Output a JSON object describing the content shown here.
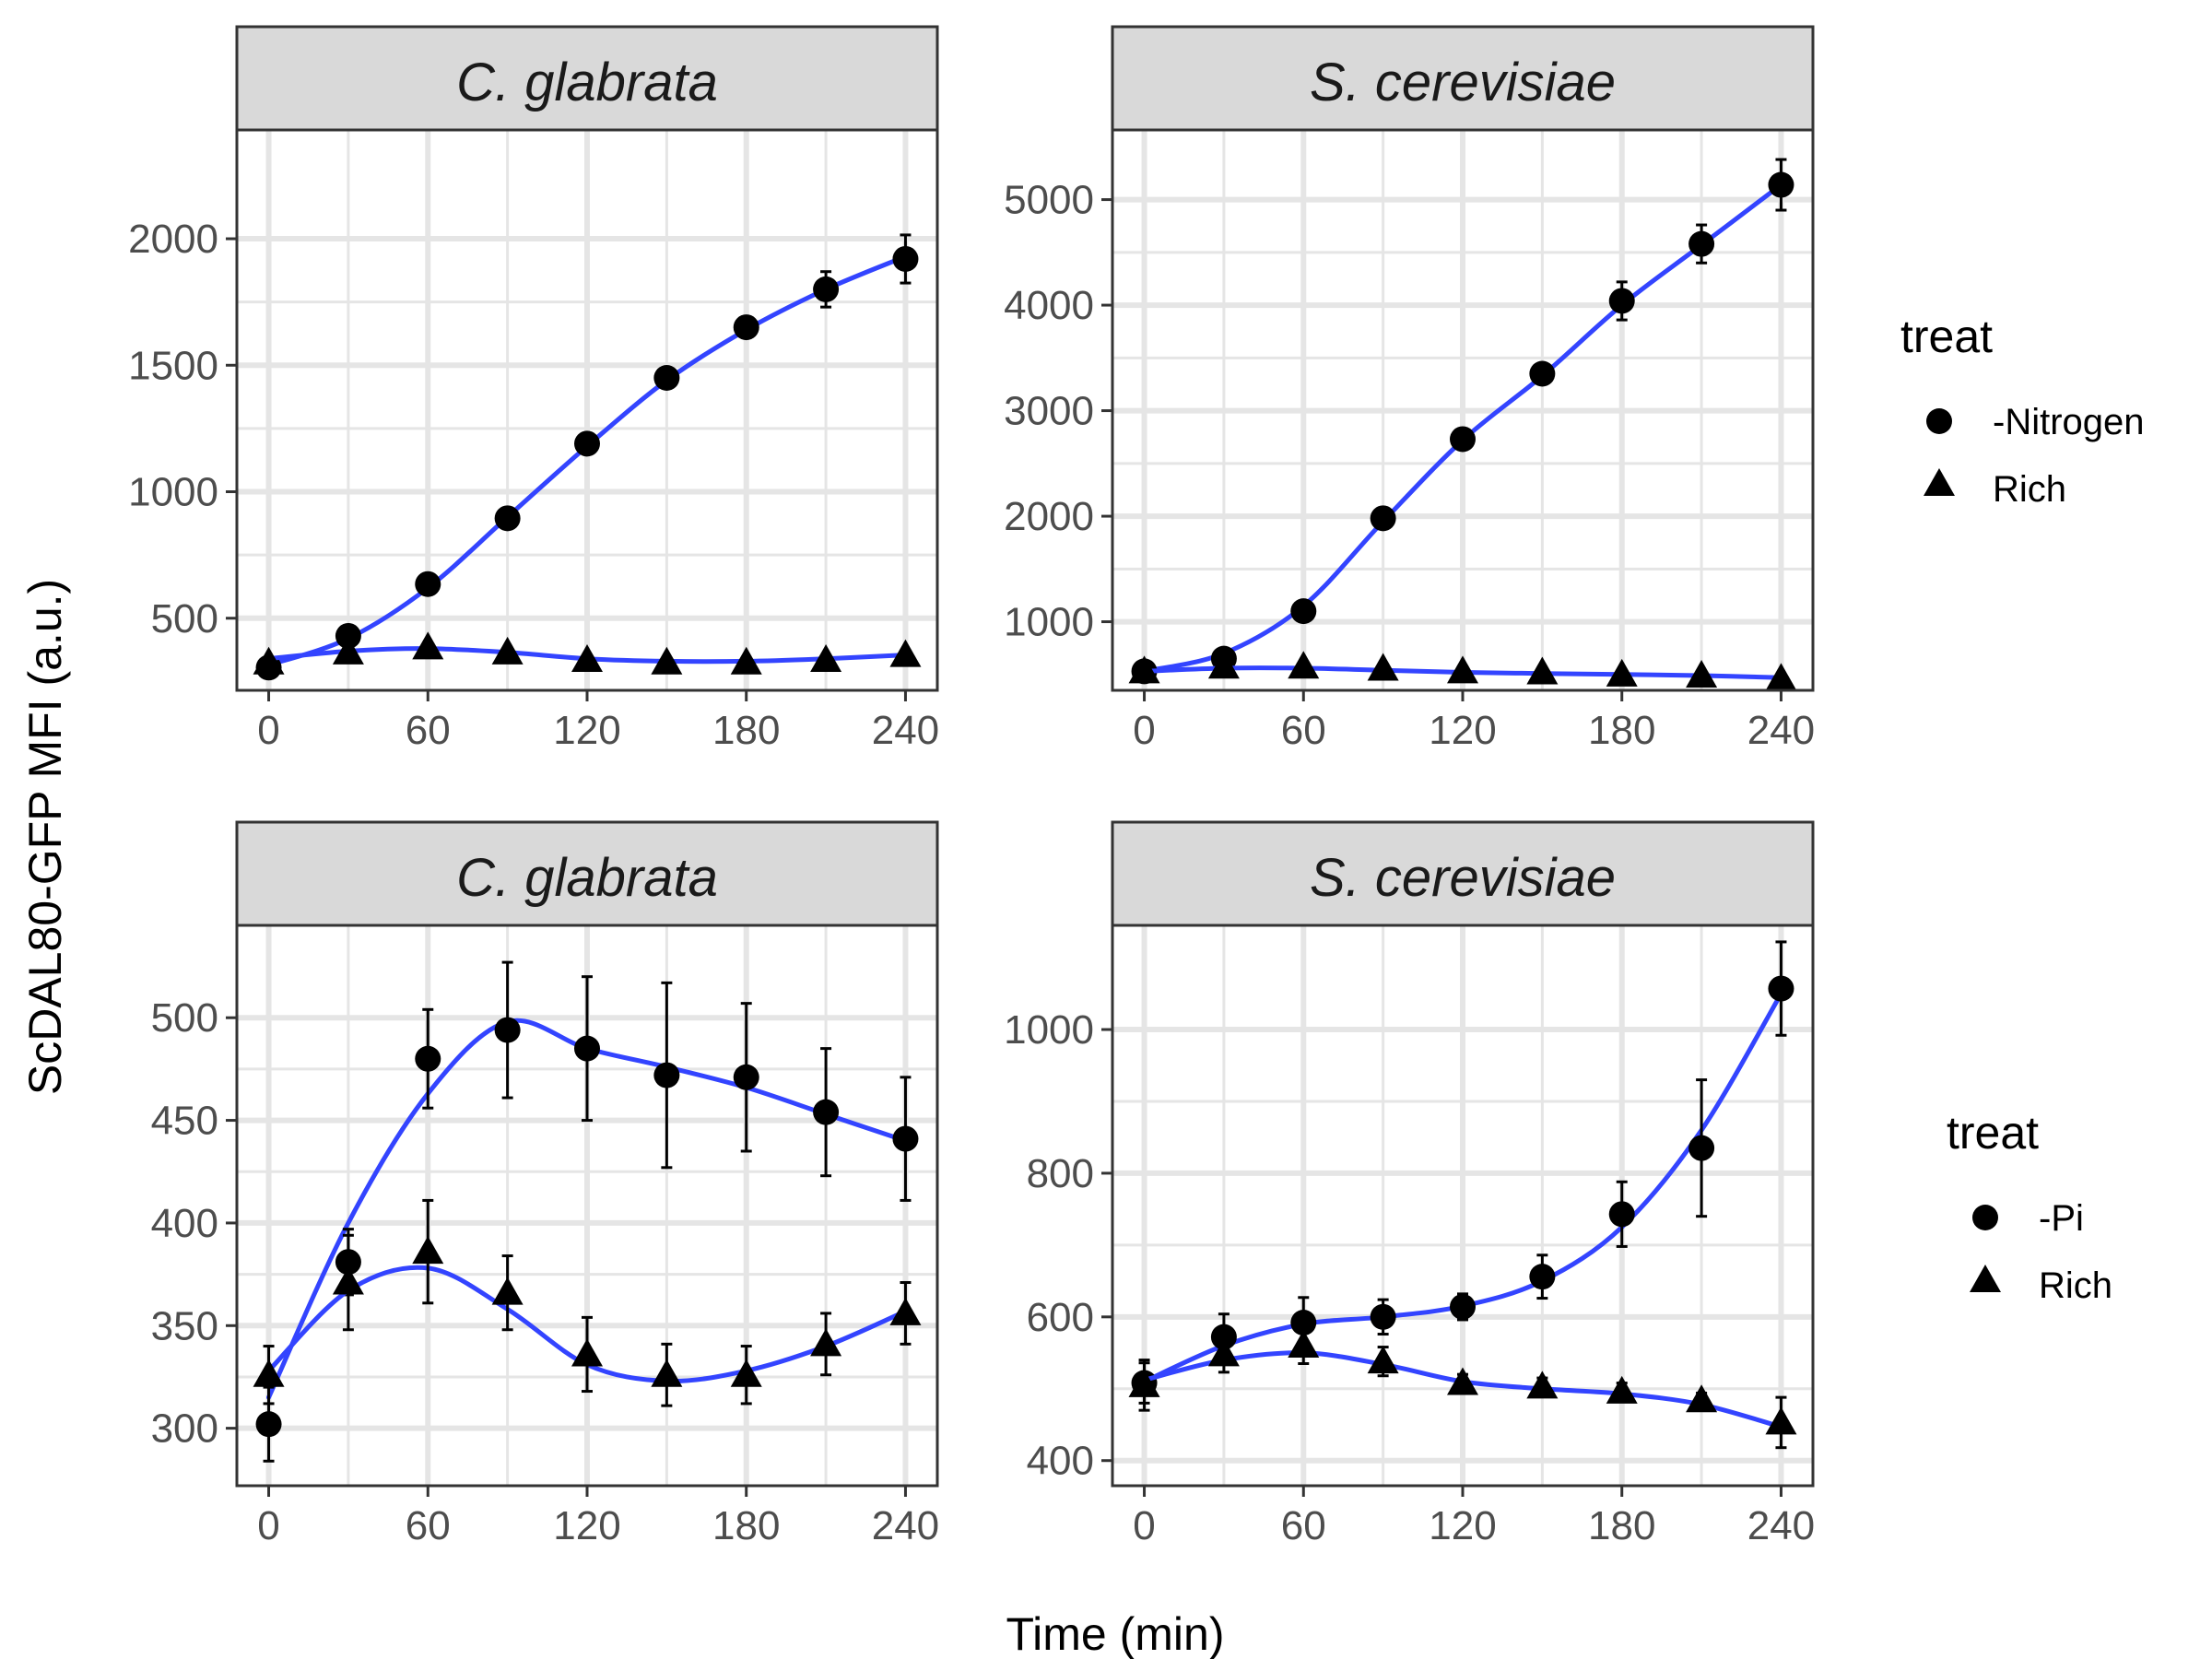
{
  "figure": {
    "xlabel": "Time (min)",
    "ylabel": "ScDAL80-GFP MFI (a.u.)"
  },
  "legends": [
    {
      "title": "treat",
      "entries": [
        {
          "label": "-Nitrogen",
          "shape": "circle"
        },
        {
          "label": "Rich",
          "shape": "triangle"
        }
      ]
    },
    {
      "title": "treat",
      "entries": [
        {
          "label": "-Pi",
          "shape": "circle"
        },
        {
          "label": "Rich",
          "shape": "triangle"
        }
      ]
    }
  ],
  "colors": {
    "fit_line": "#3344ff",
    "points": "#000000",
    "grid": "#e5e5e5",
    "strip_fill": "#d9d9d9",
    "strip_border": "#333333"
  },
  "chart_data": [
    {
      "type": "scatter",
      "title": "C. glabrata",
      "xlim": [
        -12,
        252
      ],
      "ylim": [
        215,
        2430
      ],
      "xticks": [
        0,
        60,
        120,
        180,
        240
      ],
      "yticks": [
        500,
        1000,
        1500,
        2000
      ],
      "grid": true,
      "series": [
        {
          "name": "-Nitrogen",
          "shape": "circle",
          "x": [
            0,
            30,
            60,
            90,
            120,
            150,
            180,
            210,
            240
          ],
          "y": [
            305,
            430,
            635,
            895,
            1190,
            1450,
            1650,
            1800,
            1920
          ],
          "err": [
            0,
            0,
            0,
            0,
            0,
            0,
            40,
            70,
            95
          ],
          "fit": [
            315,
            420,
            620,
            900,
            1180,
            1440,
            1640,
            1800,
            1930
          ]
        },
        {
          "name": "Rich",
          "shape": "triangle",
          "x": [
            0,
            30,
            60,
            90,
            120,
            150,
            180,
            210,
            240
          ],
          "y": [
            325,
            365,
            385,
            365,
            335,
            325,
            325,
            335,
            355
          ],
          "err": [
            0,
            0,
            0,
            0,
            0,
            0,
            0,
            0,
            0
          ],
          "fit": [
            340,
            370,
            380,
            365,
            340,
            330,
            330,
            340,
            355
          ]
        }
      ]
    },
    {
      "type": "scatter",
      "title": "S. cerevisiae",
      "xlim": [
        -12,
        252
      ],
      "ylim": [
        350,
        5660
      ],
      "xticks": [
        0,
        60,
        120,
        180,
        240
      ],
      "yticks": [
        1000,
        2000,
        3000,
        4000,
        5000
      ],
      "grid": true,
      "series": [
        {
          "name": "-Nitrogen",
          "shape": "circle",
          "x": [
            0,
            30,
            60,
            90,
            120,
            150,
            180,
            210,
            240
          ],
          "y": [
            530,
            650,
            1100,
            1980,
            2730,
            3350,
            4040,
            4580,
            5140
          ],
          "err": [
            0,
            0,
            0,
            0,
            0,
            80,
            180,
            180,
            240
          ],
          "fit": [
            530,
            700,
            1150,
            1950,
            2720,
            3330,
            4000,
            4570,
            5140
          ]
        },
        {
          "name": "Rich",
          "shape": "triangle",
          "x": [
            0,
            30,
            60,
            90,
            120,
            150,
            180,
            210,
            240
          ],
          "y": [
            530,
            575,
            575,
            555,
            530,
            520,
            500,
            490,
            460
          ],
          "err": [
            0,
            0,
            0,
            0,
            0,
            0,
            0,
            0,
            0
          ],
          "fit": [
            530,
            560,
            560,
            540,
            520,
            510,
            500,
            490,
            470
          ]
        }
      ]
    },
    {
      "type": "scatter",
      "title": "C. glabrata",
      "xlim": [
        -12,
        252
      ],
      "ylim": [
        272,
        545
      ],
      "xticks": [
        0,
        60,
        120,
        180,
        240
      ],
      "yticks": [
        300,
        350,
        400,
        450,
        500
      ],
      "grid": true,
      "series": [
        {
          "name": "-Pi",
          "shape": "circle",
          "x": [
            0,
            30,
            60,
            90,
            120,
            150,
            180,
            210,
            240
          ],
          "y": [
            302,
            381,
            480,
            494,
            485,
            472,
            471,
            454,
            441
          ],
          "err": [
            18,
            16,
            24,
            33,
            35,
            45,
            36,
            31,
            30
          ],
          "fit": [
            315,
            400,
            463,
            498,
            485,
            476,
            466,
            453,
            440
          ]
        },
        {
          "name": "Rich",
          "shape": "triangle",
          "x": [
            0,
            30,
            60,
            90,
            120,
            150,
            180,
            210,
            240
          ],
          "y": [
            326,
            371,
            386,
            366,
            336,
            326,
            326,
            341,
            356
          ],
          "err": [
            14,
            23,
            25,
            18,
            18,
            15,
            14,
            15,
            15
          ],
          "fit": [
            328,
            367,
            378,
            358,
            331,
            323,
            328,
            340,
            357
          ]
        }
      ]
    },
    {
      "type": "scatter",
      "title": "S. cerevisiae",
      "xlim": [
        -12,
        252
      ],
      "ylim": [
        365,
        1145
      ],
      "xticks": [
        0,
        60,
        120,
        180,
        240
      ],
      "yticks": [
        400,
        600,
        800,
        1000
      ],
      "grid": true,
      "series": [
        {
          "name": "-Pi",
          "shape": "circle",
          "x": [
            0,
            30,
            60,
            90,
            120,
            150,
            180,
            210,
            240
          ],
          "y": [
            508,
            572,
            592,
            600,
            614,
            656,
            743,
            835,
            1057
          ],
          "err": [
            28,
            32,
            35,
            24,
            18,
            30,
            45,
            95,
            65
          ],
          "fit": [
            510,
            560,
            590,
            600,
            615,
            650,
            725,
            860,
            1050
          ]
        },
        {
          "name": "Rich",
          "shape": "triangle",
          "x": [
            0,
            30,
            60,
            90,
            120,
            150,
            180,
            210,
            240
          ],
          "y": [
            505,
            548,
            560,
            538,
            508,
            503,
            496,
            484,
            453
          ],
          "err": [
            35,
            25,
            25,
            20,
            12,
            12,
            12,
            10,
            35
          ],
          "fit": [
            512,
            540,
            550,
            534,
            510,
            500,
            493,
            478,
            447
          ]
        }
      ]
    }
  ]
}
